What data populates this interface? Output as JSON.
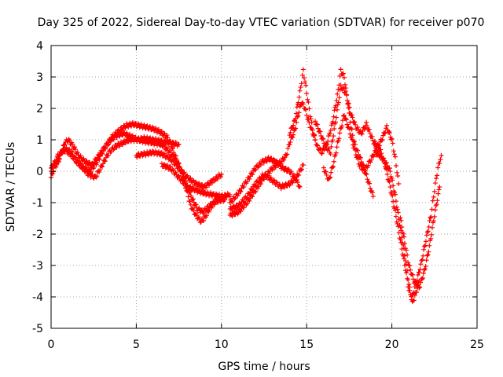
{
  "chart_data": {
    "type": "scatter",
    "title": "Day 325 of 2022, Sidereal Day-to-day VTEC variation (SDTVAR) for receiver p070",
    "xlabel": "GPS time / hours",
    "ylabel": "SDTVAR / TECUs",
    "xlim": [
      0,
      25
    ],
    "ylim": [
      -5,
      4
    ],
    "xticks": [
      0,
      5,
      10,
      15,
      20,
      25
    ],
    "yticks": [
      -5,
      -4,
      -3,
      -2,
      -1,
      0,
      1,
      2,
      3,
      4
    ],
    "xtick_labels": [
      "0",
      "5",
      "10",
      "15",
      "20",
      "25"
    ],
    "ytick_labels": [
      "-5",
      "-4",
      "-3",
      "-2",
      "-1",
      "0",
      "1",
      "2",
      "3",
      "4"
    ],
    "grid": true,
    "marker": "plus",
    "color": "#ff0000",
    "series": [
      {
        "name": "track-1",
        "points": [
          [
            0,
            -0.2
          ],
          [
            0.2,
            0.1
          ],
          [
            0.5,
            0.4
          ],
          [
            0.8,
            0.9
          ],
          [
            1.0,
            1.0
          ],
          [
            1.3,
            0.8
          ],
          [
            1.6,
            0.5
          ],
          [
            2.0,
            0.3
          ],
          [
            2.4,
            0.2
          ],
          [
            2.8,
            0.5
          ],
          [
            3.2,
            0.8
          ],
          [
            3.6,
            1.1
          ],
          [
            4.0,
            1.3
          ],
          [
            4.4,
            1.45
          ],
          [
            4.8,
            1.5
          ],
          [
            5.2,
            1.45
          ],
          [
            5.6,
            1.4
          ],
          [
            6.0,
            1.35
          ],
          [
            6.4,
            1.25
          ],
          [
            6.8,
            1.1
          ],
          [
            7.0,
            0.9
          ],
          [
            7.2,
            0.6
          ],
          [
            7.5,
            0.2
          ],
          [
            7.8,
            -0.3
          ],
          [
            8.0,
            -0.7
          ],
          [
            8.2,
            -1.1
          ],
          [
            8.5,
            -1.4
          ],
          [
            8.8,
            -1.6
          ],
          [
            9.0,
            -1.5
          ],
          [
            9.3,
            -1.2
          ],
          [
            9.6,
            -1.0
          ],
          [
            10.0,
            -0.8
          ]
        ]
      },
      {
        "name": "track-2",
        "points": [
          [
            0,
            0.1
          ],
          [
            0.3,
            0.3
          ],
          [
            0.6,
            0.6
          ],
          [
            0.9,
            0.7
          ],
          [
            1.2,
            0.6
          ],
          [
            1.5,
            0.3
          ],
          [
            1.9,
            0.1
          ],
          [
            2.3,
            0.0
          ],
          [
            2.7,
            0.3
          ],
          [
            3.1,
            0.7
          ],
          [
            3.5,
            1.0
          ],
          [
            3.9,
            1.15
          ],
          [
            4.3,
            1.2
          ],
          [
            4.7,
            1.1
          ],
          [
            5.1,
            1.0
          ],
          [
            5.5,
            0.95
          ],
          [
            6.0,
            0.9
          ],
          [
            6.5,
            0.85
          ],
          [
            7.0,
            0.6
          ],
          [
            7.4,
            0.3
          ],
          [
            7.7,
            -0.1
          ],
          [
            8.0,
            -0.5
          ],
          [
            8.3,
            -0.9
          ],
          [
            8.6,
            -1.2
          ],
          [
            8.9,
            -1.3
          ],
          [
            9.3,
            -1.1
          ],
          [
            9.7,
            -0.95
          ],
          [
            10.2,
            -0.9
          ]
        ]
      },
      {
        "name": "track-3",
        "points": [
          [
            0,
            0.0
          ],
          [
            0.4,
            0.5
          ],
          [
            0.8,
            0.7
          ],
          [
            1.2,
            0.5
          ],
          [
            1.7,
            0.2
          ],
          [
            2.2,
            -0.1
          ],
          [
            2.6,
            -0.2
          ],
          [
            3.0,
            0.2
          ],
          [
            3.4,
            0.6
          ],
          [
            3.8,
            0.8
          ],
          [
            4.2,
            0.9
          ],
          [
            4.6,
            1.0
          ],
          [
            5.0,
            1.0
          ],
          [
            5.5,
            1.05
          ],
          [
            6.0,
            1.0
          ],
          [
            6.5,
            0.95
          ],
          [
            7.0,
            0.9
          ],
          [
            7.5,
            0.85
          ]
        ]
      },
      {
        "name": "track-4",
        "points": [
          [
            5.0,
            0.5
          ],
          [
            5.5,
            0.55
          ],
          [
            6.0,
            0.6
          ],
          [
            6.5,
            0.55
          ],
          [
            7.0,
            0.4
          ],
          [
            7.5,
            0.1
          ],
          [
            8.0,
            -0.2
          ],
          [
            8.5,
            -0.4
          ],
          [
            9.0,
            -0.5
          ],
          [
            9.5,
            -0.3
          ],
          [
            10.0,
            -0.1
          ]
        ]
      },
      {
        "name": "track-5",
        "points": [
          [
            6.5,
            0.2
          ],
          [
            7.0,
            0.1
          ],
          [
            7.5,
            -0.2
          ],
          [
            8.0,
            -0.5
          ],
          [
            8.5,
            -0.6
          ],
          [
            9.0,
            -0.7
          ],
          [
            9.5,
            -0.75
          ],
          [
            10.0,
            -0.8
          ],
          [
            10.5,
            -0.75
          ]
        ]
      },
      {
        "name": "track-6",
        "points": [
          [
            10.5,
            -1.4
          ],
          [
            11.0,
            -1.3
          ],
          [
            11.5,
            -1.0
          ],
          [
            12.0,
            -0.6
          ],
          [
            12.5,
            -0.2
          ],
          [
            13.0,
            0.1
          ],
          [
            13.5,
            0.3
          ],
          [
            13.8,
            0.5
          ],
          [
            14.0,
            0.9
          ],
          [
            14.3,
            1.3
          ],
          [
            14.5,
            1.8
          ],
          [
            14.7,
            2.2
          ],
          [
            14.9,
            2.0
          ],
          [
            15.1,
            1.6
          ],
          [
            15.3,
            1.3
          ],
          [
            15.5,
            1.0
          ]
        ]
      },
      {
        "name": "track-7",
        "points": [
          [
            10.5,
            -1.2
          ],
          [
            11.0,
            -1.1
          ],
          [
            11.5,
            -0.8
          ],
          [
            12.0,
            -0.4
          ],
          [
            12.5,
            -0.1
          ],
          [
            13.0,
            -0.3
          ],
          [
            13.5,
            -0.5
          ],
          [
            14.0,
            -0.4
          ],
          [
            14.4,
            -0.2
          ],
          [
            14.8,
            0.2
          ]
        ]
      },
      {
        "name": "track-8",
        "points": [
          [
            10.5,
            -1.0
          ],
          [
            11.0,
            -0.7
          ],
          [
            11.5,
            -0.3
          ],
          [
            12.0,
            0.1
          ],
          [
            12.4,
            0.3
          ],
          [
            12.8,
            0.4
          ],
          [
            13.2,
            0.3
          ],
          [
            13.6,
            0.1
          ],
          [
            14.0,
            0.0
          ],
          [
            14.3,
            -0.2
          ],
          [
            14.6,
            -0.5
          ]
        ]
      },
      {
        "name": "track-9",
        "points": [
          [
            14.0,
            1.2
          ],
          [
            14.3,
            1.6
          ],
          [
            14.6,
            2.5
          ],
          [
            14.8,
            3.2
          ],
          [
            15.0,
            2.5
          ],
          [
            15.2,
            1.8
          ],
          [
            15.4,
            1.2
          ],
          [
            15.6,
            0.8
          ],
          [
            15.9,
            0.6
          ],
          [
            16.2,
            0.9
          ],
          [
            16.5,
            1.5
          ],
          [
            16.8,
            2.4
          ],
          [
            17.0,
            3.2
          ],
          [
            17.2,
            3.0
          ],
          [
            17.4,
            2.2
          ],
          [
            17.6,
            1.4
          ],
          [
            17.8,
            0.9
          ],
          [
            18.0,
            0.6
          ],
          [
            18.3,
            0.2
          ],
          [
            18.6,
            -0.3
          ],
          [
            18.9,
            -0.8
          ]
        ]
      },
      {
        "name": "track-10",
        "points": [
          [
            15.5,
            1.6
          ],
          [
            15.8,
            1.2
          ],
          [
            16.1,
            0.8
          ],
          [
            16.4,
            0.6
          ],
          [
            16.7,
            1.6
          ],
          [
            17.0,
            2.7
          ],
          [
            17.3,
            2.5
          ],
          [
            17.6,
            1.8
          ],
          [
            17.9,
            1.4
          ],
          [
            18.2,
            1.2
          ],
          [
            18.5,
            1.5
          ],
          [
            18.8,
            1.1
          ],
          [
            19.1,
            0.7
          ],
          [
            19.4,
            1.0
          ],
          [
            19.7,
            1.4
          ],
          [
            20.0,
            1.0
          ],
          [
            20.2,
            0.4
          ],
          [
            20.4,
            -0.4
          ]
        ]
      },
      {
        "name": "track-11",
        "points": [
          [
            16.0,
            0.1
          ],
          [
            16.3,
            -0.3
          ],
          [
            16.6,
            0.3
          ],
          [
            16.9,
            1.1
          ],
          [
            17.2,
            1.8
          ],
          [
            17.5,
            1.3
          ],
          [
            17.8,
            0.7
          ],
          [
            18.1,
            0.2
          ],
          [
            18.4,
            0.0
          ],
          [
            18.7,
            0.3
          ],
          [
            19.0,
            0.6
          ],
          [
            19.3,
            0.5
          ],
          [
            19.6,
            0.3
          ],
          [
            19.9,
            0.0
          ],
          [
            20.2,
            -0.8
          ],
          [
            20.5,
            -1.8
          ],
          [
            20.8,
            -2.8
          ],
          [
            21.0,
            -3.6
          ],
          [
            21.2,
            -4.2
          ],
          [
            21.4,
            -3.9
          ],
          [
            21.6,
            -3.5
          ]
        ]
      },
      {
        "name": "track-12",
        "points": [
          [
            19.0,
            0.9
          ],
          [
            19.3,
            0.7
          ],
          [
            19.6,
            0.2
          ],
          [
            19.9,
            -0.5
          ],
          [
            20.2,
            -1.3
          ],
          [
            20.5,
            -2.2
          ],
          [
            20.8,
            -3.1
          ],
          [
            21.0,
            -3.8
          ],
          [
            21.2,
            -4.0
          ],
          [
            21.4,
            -3.6
          ],
          [
            21.7,
            -3.0
          ],
          [
            22.0,
            -2.2
          ],
          [
            22.3,
            -1.4
          ],
          [
            22.5,
            -0.6
          ],
          [
            22.7,
            0.1
          ],
          [
            22.9,
            0.5
          ]
        ]
      },
      {
        "name": "track-13",
        "points": [
          [
            20.5,
            -1.5
          ],
          [
            20.8,
            -2.4
          ],
          [
            21.0,
            -3.0
          ],
          [
            21.3,
            -3.5
          ],
          [
            21.6,
            -3.7
          ],
          [
            21.9,
            -3.2
          ],
          [
            22.2,
            -2.4
          ],
          [
            22.5,
            -1.4
          ],
          [
            22.8,
            -0.5
          ]
        ]
      }
    ]
  }
}
